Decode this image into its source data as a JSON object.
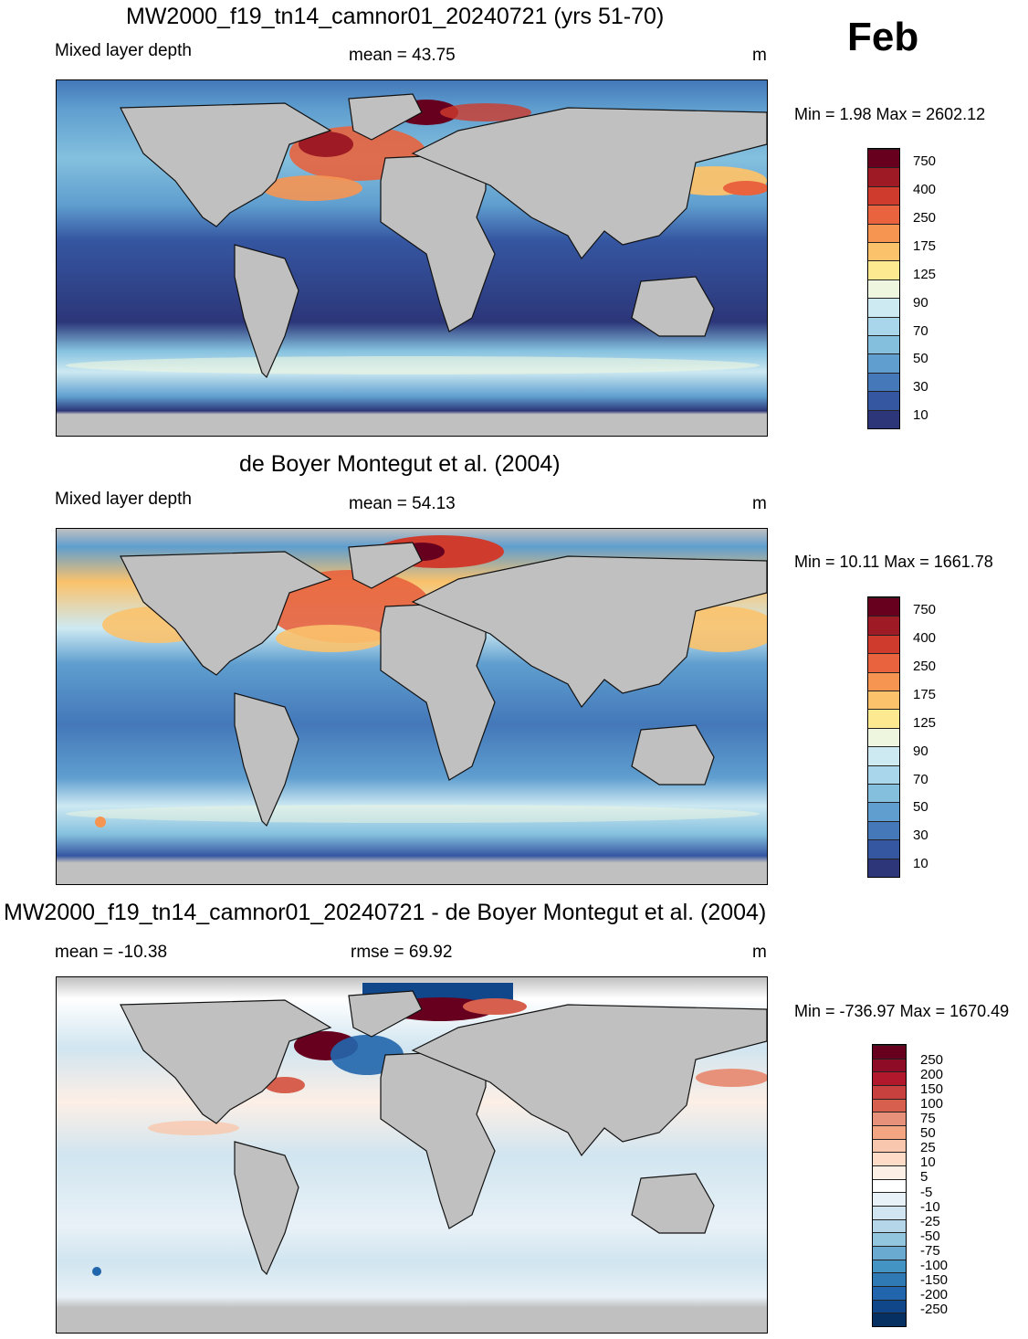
{
  "month": "Feb",
  "panels": [
    {
      "title": "MW2000_f19_tn14_camnor01_20240721 (yrs 51-70)",
      "left_label": "Mixed layer depth",
      "center_label": "mean =  43.75",
      "units": "m",
      "minmax": "Min =   1.98 Max = 2602.12",
      "colorbar": {
        "labels": [
          "750",
          "400",
          "250",
          "175",
          "125",
          "90",
          "70",
          "50",
          "30",
          "10"
        ],
        "colors": [
          "#67001f",
          "#9e1a24",
          "#cf3b2c",
          "#e8633e",
          "#f69552",
          "#fbc26b",
          "#fde98f",
          "#eef6e0",
          "#cde9f2",
          "#a9d6ea",
          "#84c0de",
          "#5f9ecf",
          "#4478b9",
          "#3556a1",
          "#2c3679"
        ]
      }
    },
    {
      "title": "de Boyer Montegut et al. (2004)",
      "left_label": "Mixed layer depth",
      "center_label": "mean =  54.13",
      "units": "m",
      "minmax": "Min =  10.11 Max = 1661.78",
      "colorbar": {
        "labels": [
          "750",
          "400",
          "250",
          "175",
          "125",
          "90",
          "70",
          "50",
          "30",
          "10"
        ],
        "colors": [
          "#67001f",
          "#9e1a24",
          "#cf3b2c",
          "#e8633e",
          "#f69552",
          "#fbc26b",
          "#fde98f",
          "#eef6e0",
          "#cde9f2",
          "#a9d6ea",
          "#84c0de",
          "#5f9ecf",
          "#4478b9",
          "#3556a1",
          "#2c3679"
        ]
      }
    },
    {
      "title": "MW2000_f19_tn14_camnor01_20240721 - de Boyer Montegut et al. (2004)",
      "left_label": "mean = -10.38",
      "center_label": "rmse =  69.92",
      "units": "m",
      "minmax": "Min = -736.97 Max = 1670.49",
      "colorbar": {
        "labels": [
          "250",
          "200",
          "150",
          "100",
          "75",
          "50",
          "25",
          "10",
          "5",
          "-5",
          "-10",
          "-25",
          "-50",
          "-75",
          "-100",
          "-150",
          "-200",
          "-250"
        ],
        "colors": [
          "#67001f",
          "#8e0c25",
          "#b2182b",
          "#c8413e",
          "#d6604d",
          "#e8917a",
          "#f4a582",
          "#f9c7ad",
          "#fddbc7",
          "#fcefe6",
          "#ffffff",
          "#e8f1f7",
          "#d1e5f0",
          "#b4d6e8",
          "#92c5de",
          "#6aaad0",
          "#4393c3",
          "#2f79b5",
          "#2166ac",
          "#10478a",
          "#053061"
        ]
      }
    }
  ]
}
